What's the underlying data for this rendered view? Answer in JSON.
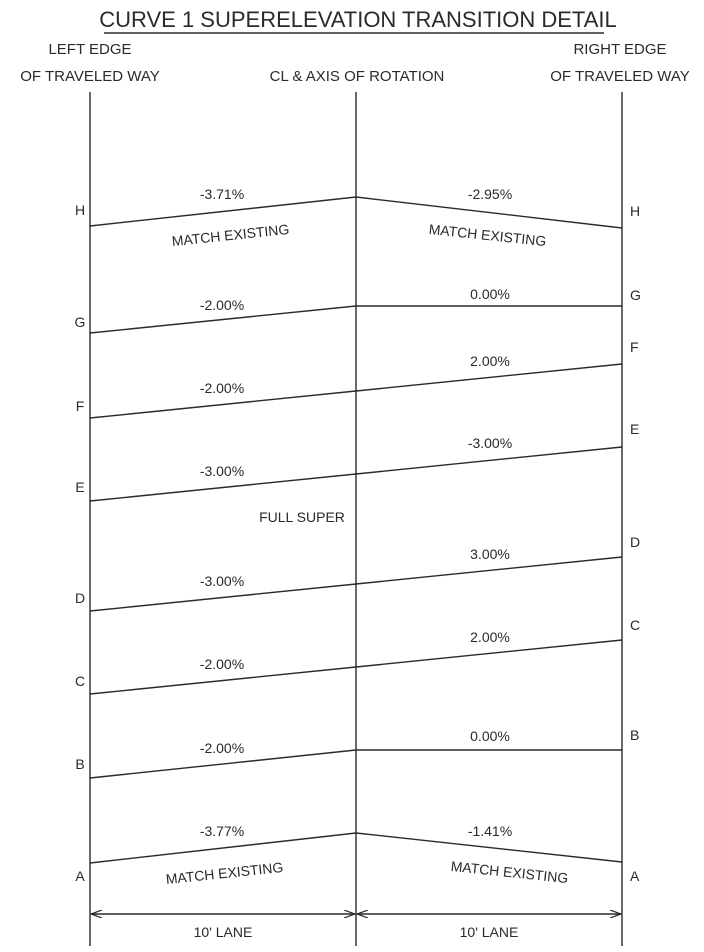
{
  "title": "CURVE 1 SUPERELEVATION TRANSITION DETAIL",
  "headers": {
    "left_line1": "LEFT EDGE",
    "left_line2": "OF TRAVELED WAY",
    "center": "CL & AXIS OF ROTATION",
    "right_line1": "RIGHT EDGE",
    "right_line2": "OF TRAVELED WAY"
  },
  "stations": [
    {
      "label": "H",
      "left_slope": "-3.71%",
      "right_slope": "-2.95%",
      "left_note": "MATCH EXISTING",
      "right_note": "MATCH EXISTING"
    },
    {
      "label": "G",
      "left_slope": "-2.00%",
      "right_slope": "0.00%"
    },
    {
      "label": "F",
      "left_slope": "-2.00%",
      "right_slope": "2.00%"
    },
    {
      "label": "E",
      "left_slope": "-3.00%",
      "right_slope": "-3.00%"
    },
    {
      "label": "D",
      "left_slope": "-3.00%",
      "right_slope": "3.00%"
    },
    {
      "label": "C",
      "left_slope": "-2.00%",
      "right_slope": "2.00%"
    },
    {
      "label": "B",
      "left_slope": "-2.00%",
      "right_slope": "0.00%"
    },
    {
      "label": "A",
      "left_slope": "-3.77%",
      "right_slope": "-1.41%",
      "left_note": "MATCH EXISTING",
      "right_note": "MATCH EXISTING"
    }
  ],
  "full_super_label": "FULL SUPER",
  "dimensions": {
    "left_lane": "10' LANE",
    "right_lane": "10' LANE"
  }
}
